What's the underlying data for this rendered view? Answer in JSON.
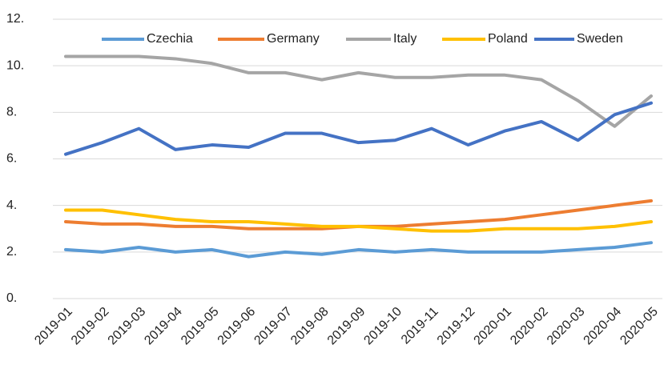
{
  "chart_data": {
    "type": "line",
    "x": [
      "2019-01",
      "2019-02",
      "2019-03",
      "2019-04",
      "2019-05",
      "2019-06",
      "2019-07",
      "2019-08",
      "2019-09",
      "2019-10",
      "2019-11",
      "2019-12",
      "2020-01",
      "2020-02",
      "2020-03",
      "2020-04",
      "2020-05"
    ],
    "series": [
      {
        "name": "Czechia",
        "color": "#5b9bd5",
        "values": [
          2.1,
          2.0,
          2.2,
          2.0,
          2.1,
          1.8,
          2.0,
          1.9,
          2.1,
          2.0,
          2.1,
          2.0,
          2.0,
          2.0,
          2.1,
          2.2,
          2.4
        ]
      },
      {
        "name": "Germany",
        "color": "#ed7d31",
        "values": [
          3.3,
          3.2,
          3.2,
          3.1,
          3.1,
          3.0,
          3.0,
          3.0,
          3.1,
          3.1,
          3.2,
          3.3,
          3.4,
          3.6,
          3.8,
          4.0,
          4.2
        ]
      },
      {
        "name": "Italy",
        "color": "#a5a5a5",
        "values": [
          10.4,
          10.4,
          10.4,
          10.3,
          10.1,
          9.7,
          9.7,
          9.4,
          9.7,
          9.5,
          9.5,
          9.6,
          9.6,
          9.4,
          8.5,
          7.4,
          8.7
        ]
      },
      {
        "name": "Poland",
        "color": "#ffc000",
        "values": [
          3.8,
          3.8,
          3.6,
          3.4,
          3.3,
          3.3,
          3.2,
          3.1,
          3.1,
          3.0,
          2.9,
          2.9,
          3.0,
          3.0,
          3.0,
          3.1,
          3.3
        ]
      },
      {
        "name": "Sweden",
        "color": "#4472c4",
        "values": [
          6.2,
          6.7,
          7.3,
          6.4,
          6.6,
          6.5,
          7.1,
          7.1,
          6.7,
          6.8,
          7.3,
          6.6,
          7.2,
          7.6,
          6.8,
          7.9,
          8.4
        ]
      }
    ],
    "ylim": [
      0,
      12
    ],
    "yticks": [
      {
        "value": 0,
        "label": "0."
      },
      {
        "value": 2,
        "label": "2."
      },
      {
        "value": 4,
        "label": "4."
      },
      {
        "value": 6,
        "label": "6."
      },
      {
        "value": 8,
        "label": "8."
      },
      {
        "value": 10,
        "label": "10."
      },
      {
        "value": 12,
        "label": "12."
      }
    ],
    "grid": true,
    "legend": "top"
  }
}
